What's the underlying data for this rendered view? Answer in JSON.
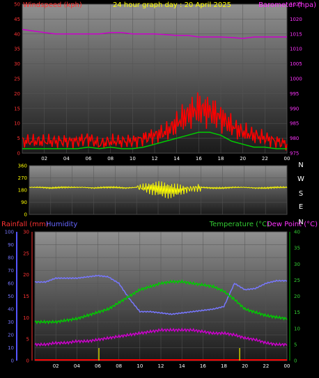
{
  "chart_data": [
    {
      "type": "line",
      "title": "24 hour graph day : 20 April 2025",
      "left_axis_label": "Windspeed (kph)",
      "right_axis_label": "Barometer (hpa)",
      "x_ticks": [
        "02",
        "04",
        "06",
        "08",
        "10",
        "12",
        "14",
        "16",
        "18",
        "20",
        "22",
        "00"
      ],
      "y_left_range": [
        0,
        50
      ],
      "y_left_ticks": [
        "0",
        "5",
        "10",
        "15",
        "20",
        "25",
        "30",
        "35",
        "40",
        "45",
        "50"
      ],
      "y_right_range": [
        975,
        1025
      ],
      "y_right_ticks": [
        "975",
        "980",
        "985",
        "990",
        "995",
        "1000",
        "1005",
        "1010",
        "1015",
        "1020",
        "1025"
      ],
      "hours": [
        0,
        1,
        2,
        3,
        4,
        5,
        6,
        7,
        8,
        9,
        10,
        11,
        12,
        13,
        14,
        15,
        16,
        17,
        18,
        19,
        20,
        21,
        22,
        23,
        24
      ],
      "series": [
        {
          "axis": "right",
          "color": "#cc00cc",
          "values": [
            1016.5,
            1016,
            1015.5,
            1015,
            1015,
            1015,
            1015,
            1015,
            1015.5,
            1015.5,
            1015,
            1015,
            1015,
            1014.8,
            1014.5,
            1014.5,
            1014,
            1014,
            1014,
            1013.8,
            1013.5,
            1014,
            1014,
            1014,
            1014
          ]
        },
        {
          "axis": "left",
          "color": "#ff0000",
          "style": "gust",
          "values": [
            4,
            4,
            4,
            4,
            4,
            4,
            5,
            3,
            4,
            4,
            4,
            5,
            6,
            7,
            10,
            13,
            15,
            14,
            12,
            9,
            7,
            6,
            5,
            4,
            3
          ]
        },
        {
          "axis": "left",
          "color": "#00cc00",
          "style": "average",
          "values": [
            1.5,
            1.5,
            1.5,
            1.5,
            1.5,
            1.5,
            2,
            1.5,
            2,
            1.5,
            1.5,
            2,
            3,
            4,
            5,
            6,
            7,
            7,
            6,
            4,
            3,
            2,
            2,
            1.5,
            1.5
          ]
        }
      ]
    },
    {
      "type": "scatter",
      "axis_label": "Wind direction",
      "y_range": [
        0,
        360
      ],
      "y_ticks": [
        "0",
        "90",
        "180",
        "270",
        "360"
      ],
      "direction_labels": [
        "N",
        "W",
        "S",
        "E",
        "N"
      ],
      "x_ticks": [
        "02",
        "04",
        "06",
        "08",
        "10",
        "12",
        "14",
        "16",
        "18",
        "20",
        "22",
        "00"
      ],
      "hours": [
        0,
        1,
        2,
        3,
        4,
        5,
        6,
        7,
        8,
        9,
        10,
        11,
        12,
        13,
        14,
        15,
        16,
        17,
        18,
        19,
        20,
        21,
        22,
        23,
        24
      ],
      "values": [
        200,
        200,
        195,
        200,
        200,
        200,
        195,
        200,
        200,
        195,
        200,
        195,
        190,
        175,
        180,
        190,
        200,
        195,
        195,
        200,
        200,
        195,
        195,
        200,
        200
      ]
    },
    {
      "type": "line",
      "legend": [
        "Rainfall (mm)",
        "Humidity",
        "Temperature (°C)",
        "Dew Point (°C)"
      ],
      "humidity_range": [
        0,
        100
      ],
      "humidity_ticks": [
        "0",
        "10",
        "20",
        "30",
        "40",
        "50",
        "60",
        "70",
        "80",
        "90",
        "100"
      ],
      "rainfall_range": [
        0,
        30
      ],
      "rainfall_ticks": [
        "0",
        "5",
        "10",
        "15",
        "20",
        "25",
        "30"
      ],
      "temperature_range": [
        0,
        40
      ],
      "temperature_ticks": [
        "0",
        "5",
        "10",
        "15",
        "20",
        "25",
        "30",
        "35",
        "40"
      ],
      "x_ticks": [
        "02",
        "04",
        "06",
        "08",
        "10",
        "12",
        "14",
        "16",
        "18",
        "20",
        "22",
        "00"
      ],
      "hours": [
        0,
        1,
        2,
        3,
        4,
        5,
        6,
        7,
        8,
        9,
        10,
        11,
        12,
        13,
        14,
        15,
        16,
        17,
        18,
        19,
        20,
        21,
        22,
        23,
        24
      ],
      "series": [
        {
          "name": "Humidity",
          "axis": "humidity",
          "color": "#7777ff",
          "values": [
            61,
            61,
            64,
            64,
            64,
            65,
            66,
            65,
            60,
            48,
            38,
            38,
            37,
            36,
            37,
            38,
            39,
            40,
            42,
            60,
            55,
            56,
            60,
            62,
            62
          ]
        },
        {
          "name": "Temperature (°C)",
          "axis": "temperature",
          "color": "#00cc00",
          "values": [
            12,
            12,
            12,
            12.5,
            13,
            14,
            15,
            16,
            18,
            20,
            22,
            23,
            24,
            24.5,
            24.5,
            24,
            23.5,
            23,
            21.5,
            19,
            16,
            15,
            14,
            13.5,
            13
          ]
        },
        {
          "name": "Dew Point (°C)",
          "axis": "temperature",
          "color": "#cc00cc",
          "values": [
            5,
            5,
            5.5,
            5.5,
            6,
            6,
            6.5,
            7,
            7.5,
            8,
            8.5,
            9,
            9.5,
            9.5,
            9.5,
            9.5,
            9,
            8.5,
            8.5,
            8,
            7,
            6.5,
            5.5,
            5,
            5
          ]
        }
      ],
      "rainfall_marks_hours": [
        6.1,
        19.5
      ],
      "rainfall_total": 0
    }
  ]
}
